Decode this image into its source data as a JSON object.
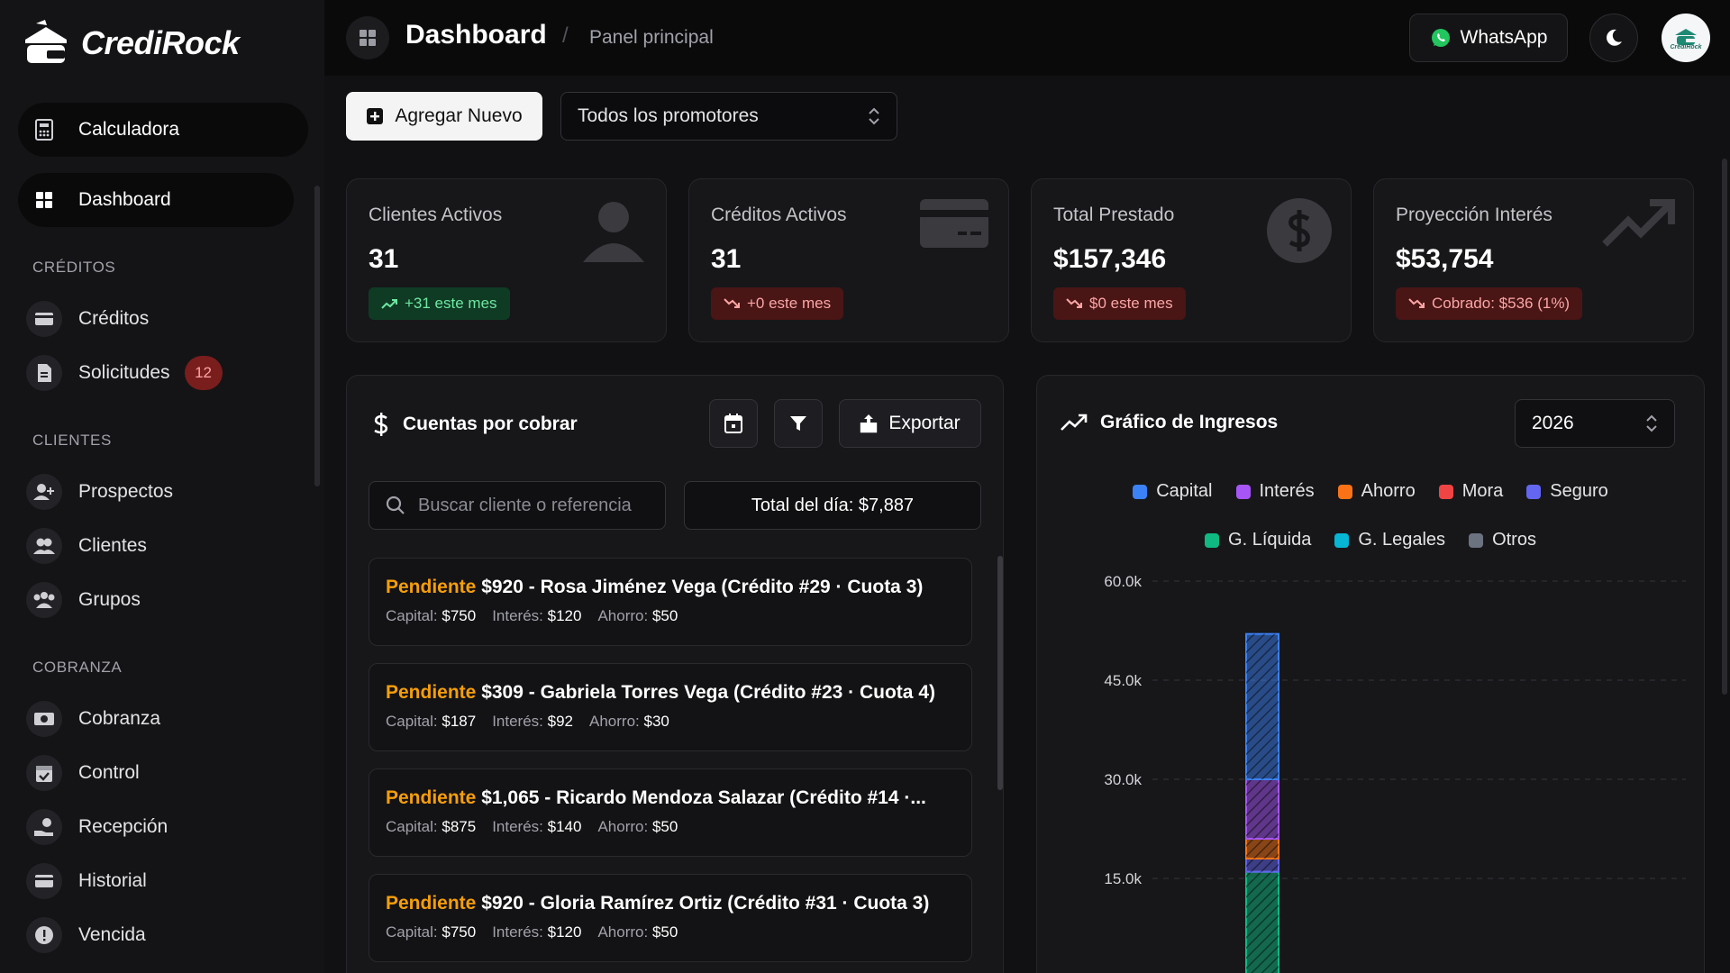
{
  "brand": {
    "name": "CrediRock",
    "avatar_text": "CrediRock"
  },
  "sidebar": {
    "top_items": [
      {
        "label": "Calculadora",
        "icon": "calculator-icon"
      },
      {
        "label": "Dashboard",
        "icon": "grid-icon"
      }
    ],
    "sections": [
      {
        "title": "CRÉDITOS",
        "items": [
          {
            "label": "Créditos",
            "icon": "credit-card-icon"
          },
          {
            "label": "Solicitudes",
            "icon": "document-icon",
            "badge": "12"
          }
        ]
      },
      {
        "title": "CLIENTES",
        "items": [
          {
            "label": "Prospectos",
            "icon": "user-plus-icon"
          },
          {
            "label": "Clientes",
            "icon": "users-icon"
          },
          {
            "label": "Grupos",
            "icon": "group-icon"
          }
        ]
      },
      {
        "title": "COBRANZA",
        "items": [
          {
            "label": "Cobranza",
            "icon": "banknote-icon"
          },
          {
            "label": "Control",
            "icon": "calendar-check-icon"
          },
          {
            "label": "Recepción",
            "icon": "hand-coins-icon"
          },
          {
            "label": "Historial",
            "icon": "history-card-icon"
          },
          {
            "label": "Vencida",
            "icon": "alert-circle-icon"
          }
        ]
      }
    ]
  },
  "header": {
    "title": "Dashboard",
    "separator": "/",
    "breadcrumb": "Panel principal",
    "whatsapp_label": "WhatsApp"
  },
  "toolbar": {
    "add_label": "Agregar Nuevo",
    "promoter_select": "Todos los promotores"
  },
  "stats": [
    {
      "label": "Clientes Activos",
      "value": "31",
      "badge": "+31 este mes",
      "trend": "up",
      "icon": "user-icon"
    },
    {
      "label": "Créditos Activos",
      "value": "31",
      "badge": "+0 este mes",
      "trend": "down",
      "icon": "credit-card-icon"
    },
    {
      "label": "Total Prestado",
      "value": "$157,346",
      "badge": "$0 este mes",
      "trend": "down",
      "icon": "dollar-circle-icon"
    },
    {
      "label": "Proyección Interés",
      "value": "$53,754",
      "badge": "Cobrado: $536 (1%)",
      "trend": "down",
      "icon": "trending-up-icon"
    }
  ],
  "accounts": {
    "title": "Cuentas por cobrar",
    "export_label": "Exportar",
    "search_placeholder": "Buscar cliente o referencia",
    "total_label": "Total del día: $7,887",
    "items": [
      {
        "status": "Pendiente",
        "desc": "$920 - Rosa Jiménez Vega (Crédito #29 · Cuota 3)",
        "capital_label": "Capital:",
        "capital": "$750",
        "interes_label": "Interés:",
        "interes": "$120",
        "ahorro_label": "Ahorro:",
        "ahorro": "$50"
      },
      {
        "status": "Pendiente",
        "desc": "$309 - Gabriela Torres Vega (Crédito #23 · Cuota 4)",
        "capital_label": "Capital:",
        "capital": "$187",
        "interes_label": "Interés:",
        "interes": "$92",
        "ahorro_label": "Ahorro:",
        "ahorro": "$30"
      },
      {
        "status": "Pendiente",
        "desc": "$1,065 - Ricardo Mendoza Salazar (Crédito #14 ·...",
        "capital_label": "Capital:",
        "capital": "$875",
        "interes_label": "Interés:",
        "interes": "$140",
        "ahorro_label": "Ahorro:",
        "ahorro": "$50"
      },
      {
        "status": "Pendiente",
        "desc": "$920 - Gloria Ramírez Ortiz (Crédito #31 · Cuota 3)",
        "capital_label": "Capital:",
        "capital": "$750",
        "interes_label": "Interés:",
        "interes": "$120",
        "ahorro_label": "Ahorro:",
        "ahorro": "$50"
      }
    ]
  },
  "income_chart": {
    "title": "Gráfico de Ingresos",
    "year": "2026",
    "legend_row1": [
      {
        "name": "Capital",
        "color": "#3b82f6"
      },
      {
        "name": "Interés",
        "color": "#a855f7"
      },
      {
        "name": "Ahorro",
        "color": "#f97316"
      },
      {
        "name": "Mora",
        "color": "#ef4444"
      },
      {
        "name": "Seguro",
        "color": "#6366f1"
      }
    ],
    "legend_row2": [
      {
        "name": "G. Líquida",
        "color": "#10b981"
      },
      {
        "name": "G. Legales",
        "color": "#06b6d4"
      },
      {
        "name": "Otros",
        "color": "#6b7280"
      }
    ]
  },
  "chart_data": {
    "type": "bar",
    "stacked": true,
    "title": "Gráfico de Ingresos",
    "y_ticks": [
      "60.0k",
      "45.0k",
      "30.0k",
      "15.0k"
    ],
    "ylim": [
      0,
      60000
    ],
    "series": [
      {
        "name": "G. Líquida",
        "color": "#10b981",
        "values": [
          16000
        ]
      },
      {
        "name": "Seguro",
        "color": "#6366f1",
        "values": [
          2000
        ]
      },
      {
        "name": "Ahorro",
        "color": "#f97316",
        "values": [
          3000
        ]
      },
      {
        "name": "Interés",
        "color": "#a855f7",
        "values": [
          9000
        ]
      },
      {
        "name": "Capital",
        "color": "#3b82f6",
        "values": [
          22000
        ]
      }
    ],
    "legend_position": "top-center",
    "grid": true
  }
}
